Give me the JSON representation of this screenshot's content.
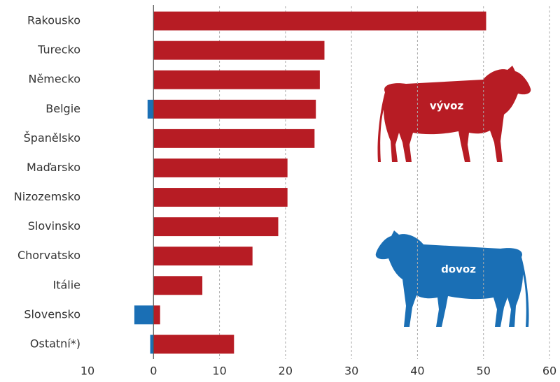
{
  "chart_data": {
    "type": "bar",
    "orientation": "horizontal",
    "stacked": false,
    "categories": [
      "Rakousko",
      "Turecko",
      "Německo",
      "Belgie",
      "Španělsko",
      "Maďarsko",
      "Nizozemsko",
      "Slovinsko",
      "Chorvatsko",
      "Itálie",
      "Slovensko",
      "Ostatní*)"
    ],
    "series": [
      {
        "name": "vývoz",
        "color": "#b71c24",
        "values": [
          50.4,
          25.9,
          25.2,
          24.6,
          24.4,
          20.3,
          20.3,
          18.9,
          15.0,
          7.4,
          1.0,
          12.2
        ]
      },
      {
        "name": "dovoz",
        "color": "#1a6fb5",
        "values": [
          null,
          null,
          null,
          -0.9,
          null,
          null,
          null,
          null,
          null,
          null,
          -2.9,
          -0.5
        ]
      }
    ],
    "xlim": [
      -10,
      60
    ],
    "xticks": [
      {
        "value": -10,
        "label": "10"
      },
      0,
      10,
      20,
      30,
      40,
      50,
      60
    ],
    "grid": true
  }
}
